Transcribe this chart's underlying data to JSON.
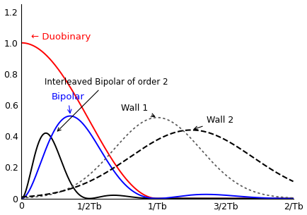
{
  "xlim": [
    0,
    2.0
  ],
  "ylim": [
    0,
    1.25
  ],
  "xticks": [
    0,
    0.5,
    1.0,
    1.5,
    2.0
  ],
  "xticklabels": [
    "0",
    "1/2Tb",
    "1/Tb",
    "3/2Tb",
    "2/Tb"
  ],
  "yticks": [
    0.0,
    0.2,
    0.4,
    0.6,
    0.8,
    1.0,
    1.2
  ],
  "figsize": [
    4.34,
    3.05
  ],
  "dpi": 100
}
